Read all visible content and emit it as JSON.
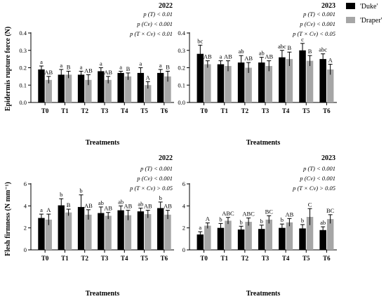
{
  "legend": {
    "position": "top-right",
    "entries": [
      {
        "label": "'Duke'",
        "color": "#000000"
      },
      {
        "label": "'Draper'",
        "color": "#a6a6a6"
      }
    ]
  },
  "chart_data": [
    {
      "type": "bar",
      "title": "2022",
      "annotations": [
        "p (T) < 0.01",
        "p (Cv) < 0.001",
        "p (T × Cv) < 0.01"
      ],
      "xlabel": "Treatments",
      "ylabel": "Epidermis rupture force (N)",
      "ylim": [
        0,
        0.4
      ],
      "yticks": [
        "0.0",
        "0.1",
        "0.2",
        "0.3",
        "0.4"
      ],
      "categories": [
        "T0",
        "T1",
        "T2",
        "T3",
        "T4",
        "T5",
        "T6"
      ],
      "series": [
        {
          "name": "'Duke'",
          "color": "#000000",
          "values": [
            0.19,
            0.16,
            0.16,
            0.18,
            0.17,
            0.17,
            0.17
          ],
          "errors": [
            0.02,
            0.03,
            0.02,
            0.02,
            0.01,
            0.03,
            0.02
          ],
          "letters": [
            "a",
            "a",
            "a",
            "a",
            "a",
            "a",
            "a"
          ]
        },
        {
          "name": "'Draper'",
          "color": "#a6a6a6",
          "values": [
            0.13,
            0.16,
            0.13,
            0.13,
            0.15,
            0.1,
            0.15
          ],
          "errors": [
            0.02,
            0.02,
            0.03,
            0.02,
            0.02,
            0.02,
            0.03
          ],
          "letters": [
            "AB",
            "B",
            "AB",
            "AB",
            "B",
            "A",
            "B"
          ]
        }
      ]
    },
    {
      "type": "bar",
      "title": "2023",
      "annotations": [
        "p (T) < 0.001",
        "p (Cv) < 0.001",
        "p (T × Cv) < 0.05"
      ],
      "xlabel": "Treatments",
      "ylabel": "",
      "ylim": [
        0,
        0.4
      ],
      "yticks": [
        "0.0",
        "0.1",
        "0.2",
        "0.3",
        "0.4"
      ],
      "categories": [
        "T0",
        "T1",
        "T2",
        "T3",
        "T4",
        "T5",
        "T6"
      ],
      "series": [
        {
          "name": "'Duke'",
          "color": "#000000",
          "values": [
            0.28,
            0.22,
            0.23,
            0.23,
            0.26,
            0.3,
            0.25
          ],
          "errors": [
            0.05,
            0.02,
            0.04,
            0.03,
            0.04,
            0.04,
            0.03
          ],
          "letters": [
            "bc",
            "a",
            "ab",
            "ab",
            "abc",
            "c",
            "abc"
          ]
        },
        {
          "name": "'Draper'",
          "color": "#a6a6a6",
          "values": [
            0.22,
            0.21,
            0.2,
            0.21,
            0.25,
            0.24,
            0.19
          ],
          "errors": [
            0.02,
            0.03,
            0.03,
            0.03,
            0.04,
            0.03,
            0.03
          ],
          "letters": [
            "AB",
            "AB",
            "AB",
            "AB",
            "B",
            "B",
            "A"
          ]
        }
      ]
    },
    {
      "type": "bar",
      "title": "2022",
      "annotations": [
        "p (T) < 0.001",
        "p (Cv) < 0.001",
        "p (T × Cv) > 0.05"
      ],
      "xlabel": "Treatments",
      "ylabel": "Flesh firmness (N mm⁻¹)",
      "ylim": [
        0,
        6
      ],
      "yticks": [
        "0",
        "2",
        "4",
        "6"
      ],
      "categories": [
        "T0",
        "T1",
        "T2",
        "T3",
        "T4",
        "T5",
        "T6"
      ],
      "series": [
        {
          "name": "'Duke'",
          "color": "#000000",
          "values": [
            2.9,
            4.05,
            3.9,
            3.35,
            3.6,
            3.5,
            3.8
          ],
          "errors": [
            0.35,
            0.6,
            1.1,
            0.55,
            0.4,
            0.3,
            0.55
          ],
          "letters": [
            "a",
            "b",
            "b",
            "ab",
            "ab",
            "ab",
            "b"
          ]
        },
        {
          "name": "'Draper'",
          "color": "#a6a6a6",
          "values": [
            2.75,
            3.4,
            3.2,
            3.1,
            3.15,
            3.25,
            3.2
          ],
          "errors": [
            0.5,
            0.3,
            0.45,
            0.3,
            0.45,
            0.35,
            0.4
          ],
          "letters": [
            "A",
            "B",
            "AB",
            "AB",
            "AB",
            "AB",
            "AB"
          ]
        }
      ]
    },
    {
      "type": "bar",
      "title": "2023",
      "annotations": [
        "p (T) < 0.001",
        "p (Cv) < 0.001",
        "p (T × Cv) > 0.05"
      ],
      "xlabel": "Treatments",
      "ylabel": "",
      "ylim": [
        0,
        6
      ],
      "yticks": [
        "0",
        "2",
        "4",
        "6"
      ],
      "categories": [
        "T0",
        "T1",
        "T2",
        "T3",
        "T4",
        "T5",
        "T6"
      ],
      "series": [
        {
          "name": "'Duke'",
          "color": "#000000",
          "values": [
            1.4,
            2.0,
            1.85,
            1.9,
            2.0,
            1.95,
            1.8
          ],
          "errors": [
            0.25,
            0.4,
            0.3,
            0.35,
            0.35,
            0.35,
            0.3
          ],
          "letters": [
            "a",
            "b",
            "b",
            "b",
            "b",
            "b",
            "ab"
          ]
        },
        {
          "name": "'Draper'",
          "color": "#a6a6a6",
          "values": [
            2.2,
            2.65,
            2.55,
            2.75,
            2.5,
            3.0,
            2.8
          ],
          "errors": [
            0.25,
            0.3,
            0.35,
            0.35,
            0.35,
            0.75,
            0.4
          ],
          "letters": [
            "A",
            "ABC",
            "ABC",
            "BC",
            "AB",
            "C",
            "BC"
          ]
        }
      ]
    }
  ]
}
